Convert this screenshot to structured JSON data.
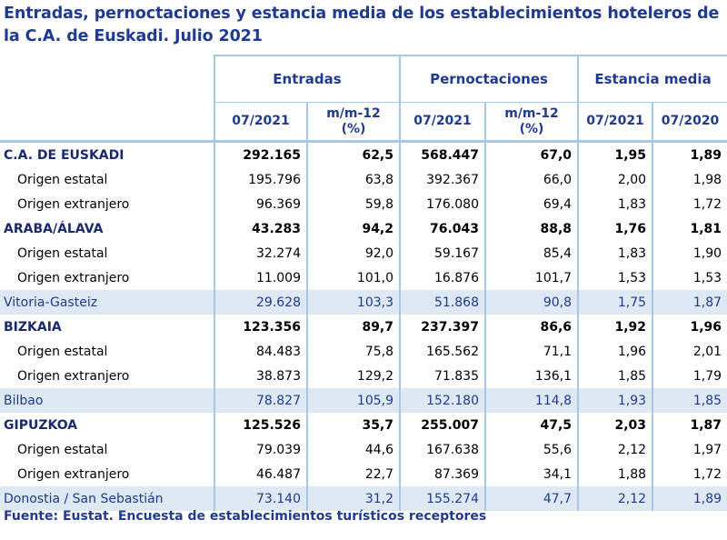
{
  "title": "Entradas, pernoctaciones y estancia media de los establecimientos hoteleros de la C.A. de Euskadi.  Julio 2021",
  "groups": {
    "entradas": "Entradas",
    "pernoctaciones": "Pernoctaciones",
    "estancia": "Estancia media"
  },
  "subheaders": {
    "ent_period": "07/2021",
    "ent_mm_line1": "m/m-12",
    "ent_mm_line2": "(%)",
    "per_period": "07/2021",
    "per_mm_line1": "m/m-12",
    "per_mm_line2": "(%)",
    "est_2021": "07/2021",
    "est_2020": "07/2020"
  },
  "rows": [
    {
      "label": "C.A. DE EUSKADI",
      "ent": "292.165",
      "ent_mm": "62,5",
      "per": "568.447",
      "per_mm": "67,0",
      "est21": "1,95",
      "est20": "1,89"
    },
    {
      "label": "Origen estatal",
      "ent": "195.796",
      "ent_mm": "63,8",
      "per": "392.367",
      "per_mm": "66,0",
      "est21": "2,00",
      "est20": "1,98"
    },
    {
      "label": "Origen extranjero",
      "ent": "96.369",
      "ent_mm": "59,8",
      "per": "176.080",
      "per_mm": "69,4",
      "est21": "1,83",
      "est20": "1,72"
    },
    {
      "label": "ARABA/ÁLAVA",
      "ent": "43.283",
      "ent_mm": "94,2",
      "per": "76.043",
      "per_mm": "88,8",
      "est21": "1,76",
      "est20": "1,81"
    },
    {
      "label": "Origen estatal",
      "ent": "32.274",
      "ent_mm": "92,0",
      "per": "59.167",
      "per_mm": "85,4",
      "est21": "1,83",
      "est20": "1,90"
    },
    {
      "label": "Origen extranjero",
      "ent": "11.009",
      "ent_mm": "101,0",
      "per": "16.876",
      "per_mm": "101,7",
      "est21": "1,53",
      "est20": "1,53"
    },
    {
      "label": "Vitoria-Gasteiz",
      "ent": "29.628",
      "ent_mm": "103,3",
      "per": "51.868",
      "per_mm": "90,8",
      "est21": "1,75",
      "est20": "1,87"
    },
    {
      "label": "BIZKAIA",
      "ent": "123.356",
      "ent_mm": "89,7",
      "per": "237.397",
      "per_mm": "86,6",
      "est21": "1,92",
      "est20": "1,96"
    },
    {
      "label": "Origen estatal",
      "ent": "84.483",
      "ent_mm": "75,8",
      "per": "165.562",
      "per_mm": "71,1",
      "est21": "1,96",
      "est20": "2,01"
    },
    {
      "label": "Origen extranjero",
      "ent": "38.873",
      "ent_mm": "129,2",
      "per": "71.835",
      "per_mm": "136,1",
      "est21": "1,85",
      "est20": "1,79"
    },
    {
      "label": "Bilbao",
      "ent": "78.827",
      "ent_mm": "105,9",
      "per": "152.180",
      "per_mm": "114,8",
      "est21": "1,93",
      "est20": "1,85"
    },
    {
      "label": "GIPUZKOA",
      "ent": "125.526",
      "ent_mm": "35,7",
      "per": "255.007",
      "per_mm": "47,5",
      "est21": "2,03",
      "est20": "1,87"
    },
    {
      "label": "Origen estatal",
      "ent": "79.039",
      "ent_mm": "44,6",
      "per": "167.638",
      "per_mm": "55,6",
      "est21": "2,12",
      "est20": "1,97"
    },
    {
      "label": "Origen extranjero",
      "ent": "46.487",
      "ent_mm": "22,7",
      "per": "87.369",
      "per_mm": "34,1",
      "est21": "1,88",
      "est20": "1,72"
    },
    {
      "label": "Donostia / San Sebastián",
      "ent": "73.140",
      "ent_mm": "31,2",
      "per": "155.274",
      "per_mm": "47,7",
      "est21": "2,12",
      "est20": "1,89"
    }
  ],
  "footer": "Fuente: Eustat. Encuesta de establecimientos turísticos receptores",
  "colors": {
    "header_text": "#1f3a8f",
    "grid_line": "#a8c6e6",
    "city_row_bg": "#dde8f3"
  }
}
